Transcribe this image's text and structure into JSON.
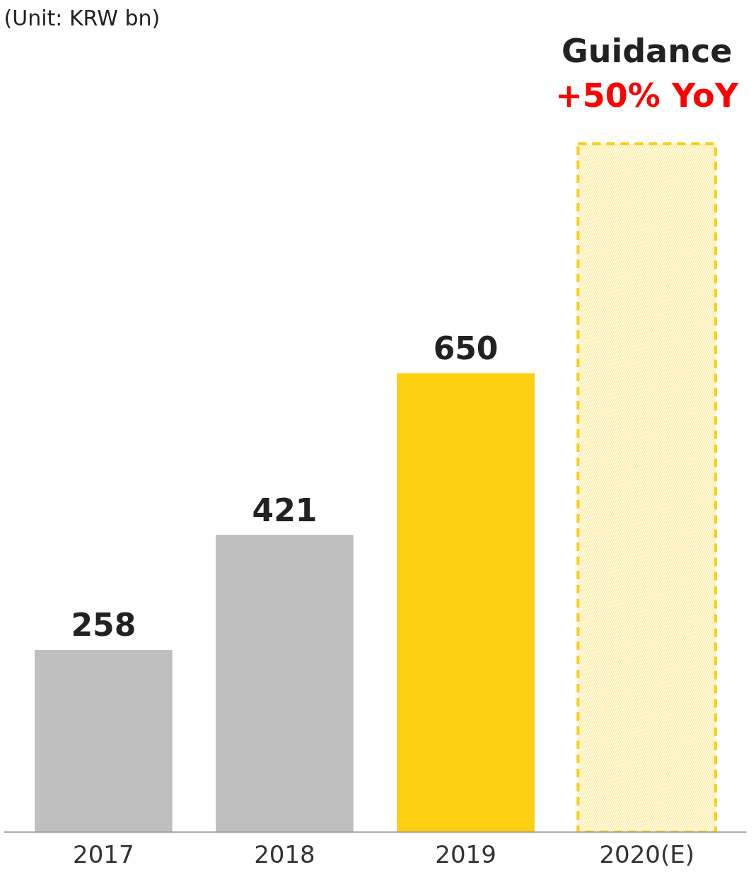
{
  "chart_data": {
    "type": "bar",
    "title": "(Unit: KRW bn)",
    "categories": [
      "2017",
      "2018",
      "2019",
      "2020(E)"
    ],
    "values": [
      258,
      421,
      650,
      975
    ],
    "value_labels": [
      "258",
      "421",
      "650",
      null
    ],
    "colors": [
      "#bfbfbf",
      "#bfbfbf",
      "#fccf10",
      "#fccf10"
    ],
    "annotations": [
      "Guidance",
      "+50% YoY"
    ],
    "grid": false
  }
}
